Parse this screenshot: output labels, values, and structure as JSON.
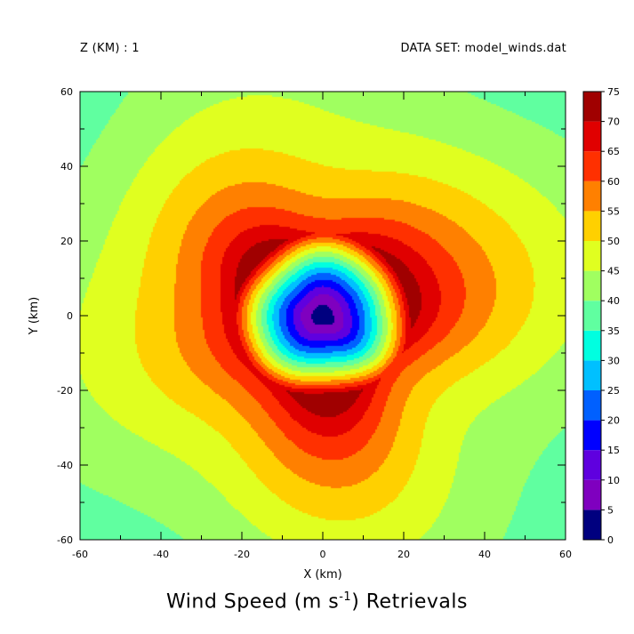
{
  "header": {
    "level_label": "Z (KM) : 1",
    "dataset_label": "DATA SET: model_winds.dat"
  },
  "chart_data": {
    "type": "heatmap",
    "title_prefix": "Wind Speed (m s",
    "title_exponent": "-1",
    "title_suffix": ") Retrievals",
    "xlabel": "X (km)",
    "ylabel": "Y (km)",
    "xlim": [
      -60,
      60
    ],
    "ylim": [
      -60,
      60
    ],
    "x_ticks": [
      -60,
      -40,
      -20,
      0,
      20,
      40,
      60
    ],
    "y_ticks": [
      -60,
      -40,
      -20,
      0,
      20,
      40,
      60
    ],
    "colorbar": {
      "levels": [
        0,
        5,
        10,
        15,
        20,
        25,
        30,
        35,
        40,
        45,
        50,
        55,
        60,
        65,
        70,
        75
      ],
      "tick_labels": [
        "0",
        "5",
        "10",
        "15",
        "20",
        "25",
        "30",
        "35",
        "40",
        "45",
        "50",
        "55",
        "60",
        "65",
        "70",
        "75"
      ],
      "colors": [
        "#00007f",
        "#7f00bf",
        "#5f00df",
        "#0000ff",
        "#0060ff",
        "#00c0ff",
        "#00ffe0",
        "#60ffa0",
        "#a0ff60",
        "#e0ff20",
        "#ffd000",
        "#ff8000",
        "#ff3000",
        "#e00000",
        "#a00000"
      ]
    },
    "field": {
      "center_xy_km": [
        0,
        0
      ],
      "peak_speed": 74,
      "radius_of_max_wind_km": 22,
      "min_speed_center": 2
    }
  }
}
